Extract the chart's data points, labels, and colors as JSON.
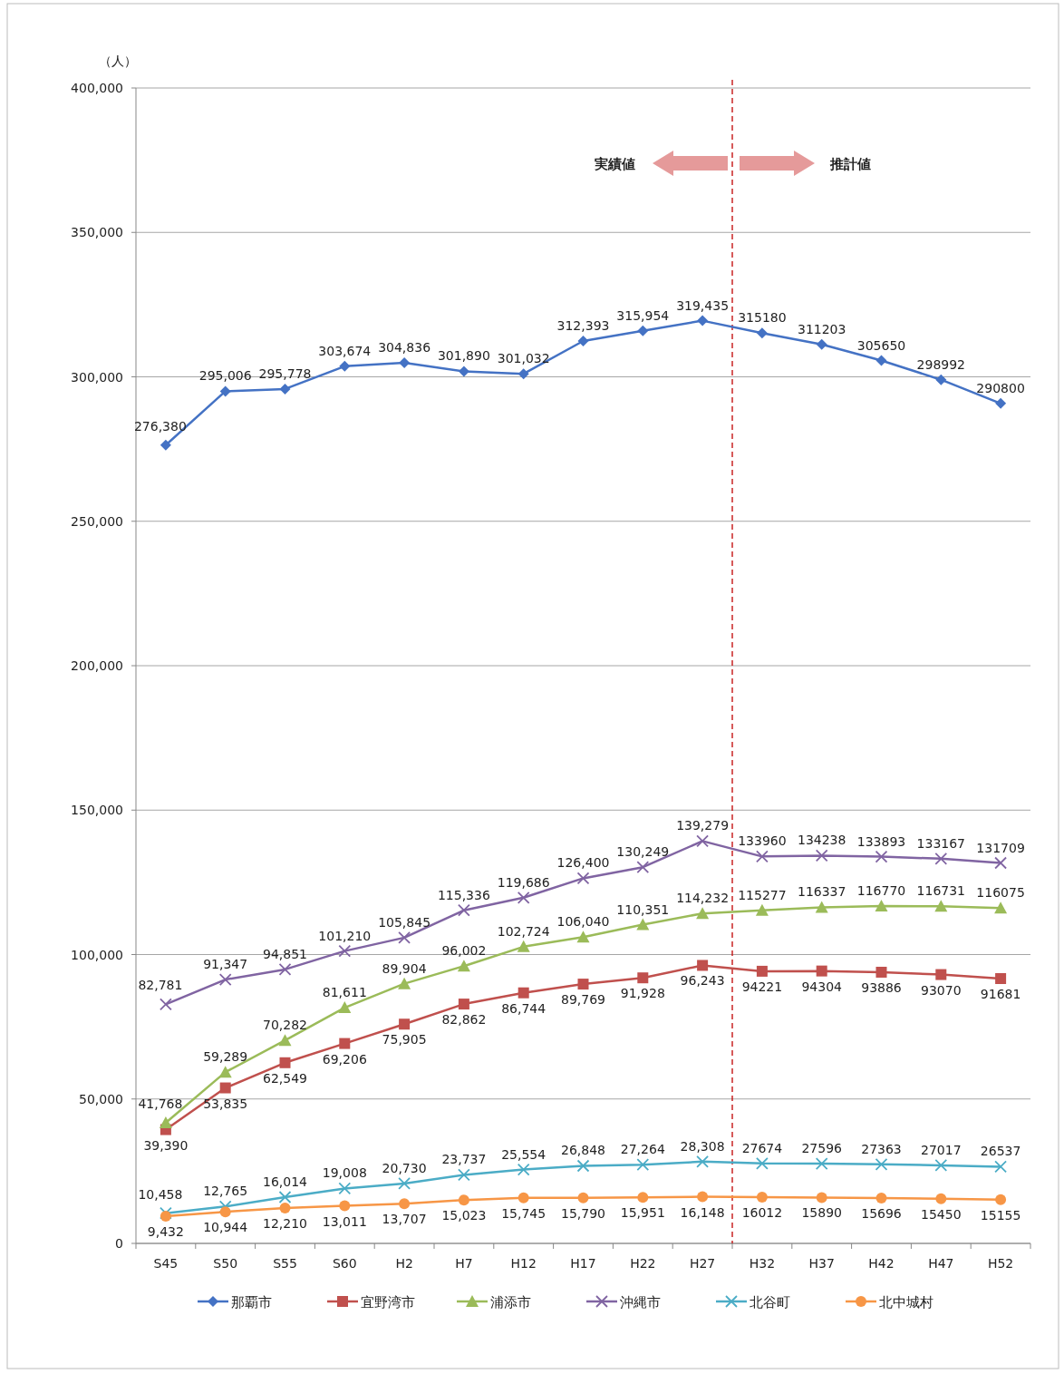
{
  "chart_data": {
    "type": "line",
    "ylabel": "（人）",
    "categories": [
      "S45",
      "S50",
      "S55",
      "S60",
      "H2",
      "H7",
      "H12",
      "H17",
      "H22",
      "H27",
      "H32",
      "H37",
      "H42",
      "H47",
      "H52"
    ],
    "ylim": [
      0,
      400000
    ],
    "yticks": [
      {
        "value": 0,
        "label": "0"
      },
      {
        "value": 50000,
        "label": "50,000"
      },
      {
        "value": 100000,
        "label": "100,000"
      },
      {
        "value": 150000,
        "label": "150,000"
      },
      {
        "value": 200000,
        "label": "200,000"
      },
      {
        "value": 250000,
        "label": "250,000"
      },
      {
        "value": 300000,
        "label": "300,000"
      },
      {
        "value": 350000,
        "label": "350,000"
      },
      {
        "value": 400000,
        "label": "400,000"
      }
    ],
    "grid": "y",
    "legend": "bottom",
    "line_style": "solid",
    "annotations": [
      "実績値",
      "推計値"
    ],
    "series": [
      {
        "name": "那覇市",
        "color": "#4472c4",
        "marker": "diamond",
        "values": [
          276380,
          295006,
          295778,
          303674,
          304836,
          301890,
          301032,
          312393,
          315954,
          319435,
          315180,
          311203,
          305650,
          298992,
          290800
        ],
        "value_labels": [
          "276,380",
          "295,006",
          "295,778",
          "303,674",
          "304,836",
          "301,890",
          "301,032",
          "312,393",
          "315,954",
          "319,435",
          "315180",
          "311203",
          "305650",
          "298992",
          "290800"
        ]
      },
      {
        "name": "宜野湾市",
        "color": "#c0504d",
        "marker": "square",
        "values": [
          39390,
          53835,
          62549,
          69206,
          75905,
          82862,
          86744,
          89769,
          91928,
          96243,
          94221,
          94304,
          93886,
          93070,
          91681
        ],
        "value_labels": [
          "39,390",
          "53,835",
          "62,549",
          "69,206",
          "75,905",
          "82,862",
          "86,744",
          "89,769",
          "91,928",
          "96,243",
          "94221",
          "94304",
          "93886",
          "93070",
          "91681"
        ]
      },
      {
        "name": "浦添市",
        "color": "#9bbb59",
        "marker": "triangle",
        "values": [
          41768,
          59289,
          70282,
          81611,
          89904,
          96002,
          102724,
          106040,
          110351,
          114232,
          115277,
          116337,
          116770,
          116731,
          116075
        ],
        "value_labels": [
          "41,768",
          "59,289",
          "70,282",
          "81,611",
          "89,904",
          "96,002",
          "102,724",
          "106,040",
          "110,351",
          "114,232",
          "115277",
          "116337",
          "116770",
          "116731",
          "116075"
        ]
      },
      {
        "name": "沖縄市",
        "color": "#8064a2",
        "marker": "cross",
        "values": [
          82781,
          91347,
          94851,
          101210,
          105845,
          115336,
          119686,
          126400,
          130249,
          139279,
          133960,
          134238,
          133893,
          133167,
          131709
        ],
        "value_labels": [
          "82,781",
          "91,347",
          "94,851",
          "101,210",
          "105,845",
          "115,336",
          "119,686",
          "126,400",
          "130,249",
          "139,279",
          "133960",
          "134238",
          "133893",
          "133167",
          "131709"
        ]
      },
      {
        "name": "北谷町",
        "color": "#4bacc6",
        "marker": "cross",
        "values": [
          10458,
          12765,
          16014,
          19008,
          20730,
          23737,
          25554,
          26848,
          27264,
          28308,
          27674,
          27596,
          27363,
          27017,
          26537
        ],
        "value_labels": [
          "10,458",
          "12,765",
          "16,014",
          "19,008",
          "20,730",
          "23,737",
          "25,554",
          "26,848",
          "27,264",
          "28,308",
          "27674",
          "27596",
          "27363",
          "27017",
          "26537"
        ]
      },
      {
        "name": "北中城村",
        "color": "#f79646",
        "marker": "circle",
        "values": [
          9432,
          10944,
          12210,
          13011,
          13707,
          15023,
          15745,
          15790,
          15951,
          16148,
          16012,
          15890,
          15696,
          15450,
          15155
        ],
        "value_labels": [
          "9,432",
          "10,944",
          "12,210",
          "13,011",
          "13,707",
          "15,023",
          "15,745",
          "15,790",
          "15,951",
          "16,148",
          "16012",
          "15890",
          "15696",
          "15450",
          "15155"
        ]
      }
    ]
  }
}
